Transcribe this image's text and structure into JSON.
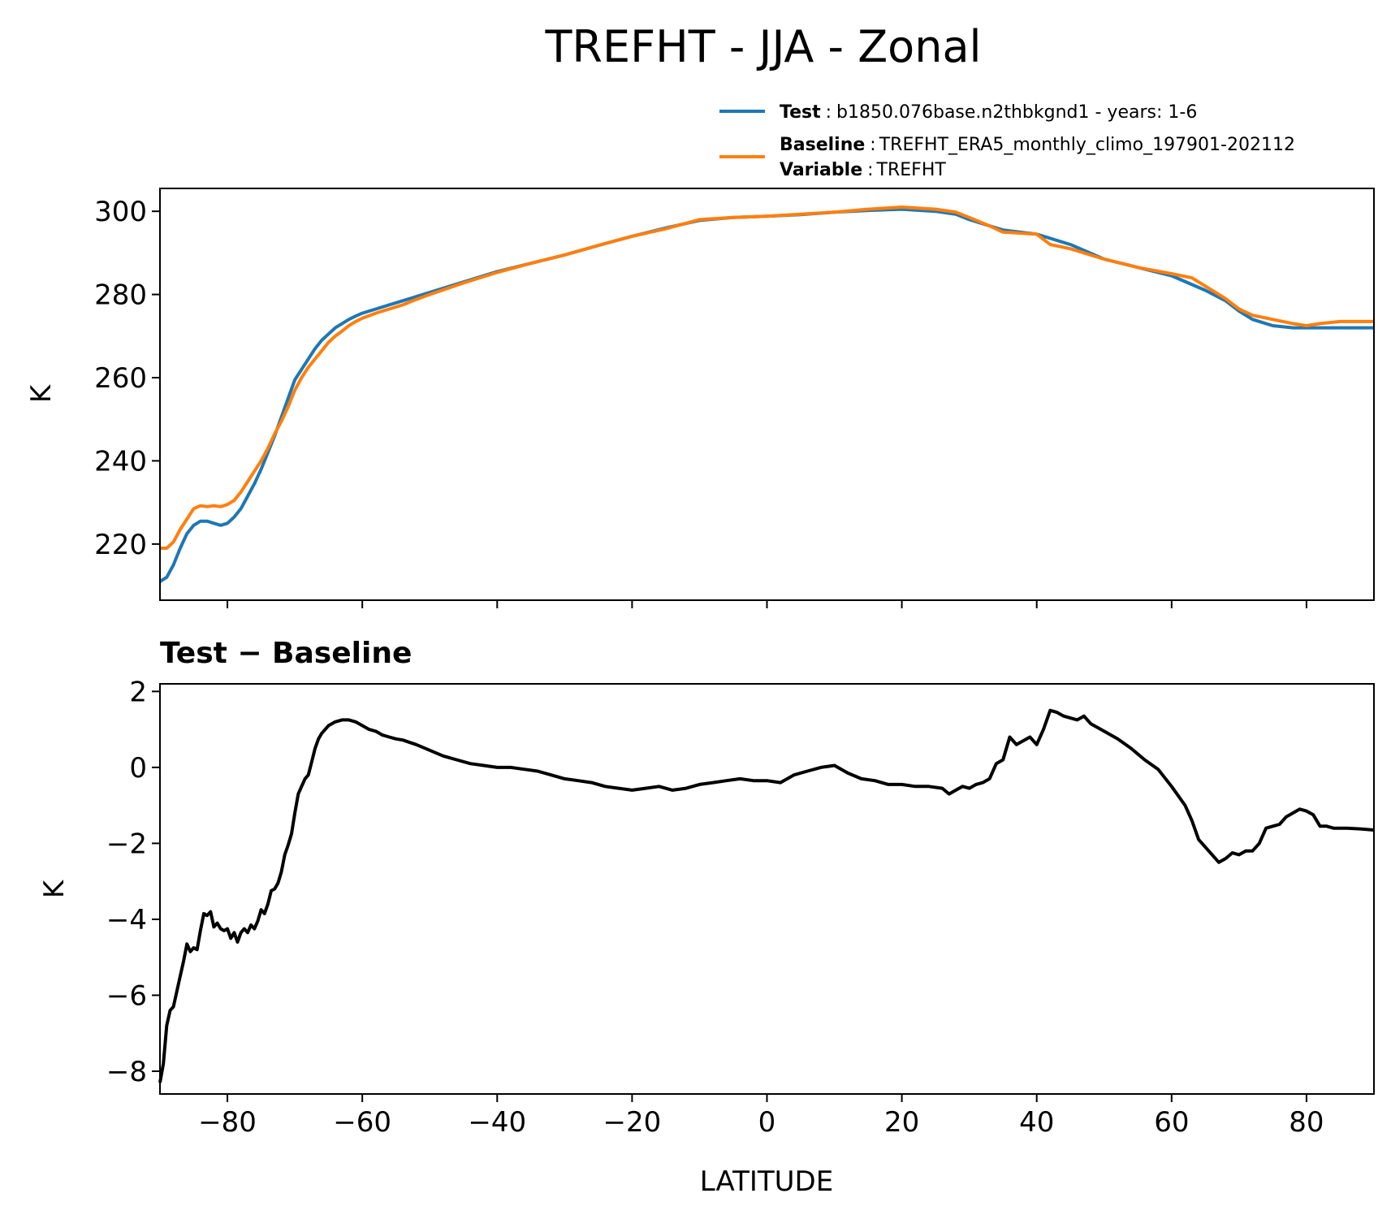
{
  "figure": {
    "title": "TREFHT - JJA - Zonal"
  },
  "legend": {
    "entries": [
      {
        "key": "Test",
        "sep": ":",
        "value": "b1850.076base.n2thbkgnd1 - years: 1-6",
        "color": "#1f77b4"
      },
      {
        "key": "Baseline",
        "sep": ":",
        "value": "TREFHT_ERA5_monthly_climo_197901-202112",
        "color": "#ff7f0e"
      }
    ],
    "variable": {
      "key": "Variable",
      "sep": ":",
      "value": "TREFHT"
    }
  },
  "chart_data": [
    {
      "type": "line",
      "title": "",
      "xlabel": "",
      "ylabel": "K",
      "xlim": [
        -90,
        90
      ],
      "ylim": [
        206.5,
        305.5
      ],
      "xticks": [
        -80,
        -60,
        -40,
        -20,
        0,
        20,
        40,
        60,
        80
      ],
      "xtick_labels_visible": false,
      "yticks": [
        220,
        240,
        260,
        280,
        300
      ],
      "ytick_labels": [
        "220",
        "240",
        "260",
        "280",
        "300"
      ],
      "grid": false,
      "legend_position": "top-right (above axes)",
      "series": [
        {
          "name": "Test",
          "color": "#1f77b4",
          "x": [
            -90,
            -89,
            -88,
            -87,
            -86,
            -85,
            -84,
            -83,
            -82,
            -81,
            -80,
            -79,
            -78,
            -77,
            -76,
            -75,
            -74,
            -73,
            -72,
            -71,
            -70,
            -69,
            -68,
            -67,
            -66,
            -65,
            -64,
            -63,
            -62,
            -61,
            -60,
            -58,
            -56,
            -54,
            -52,
            -50,
            -45,
            -40,
            -35,
            -30,
            -25,
            -20,
            -15,
            -10,
            -5,
            0,
            5,
            10,
            15,
            20,
            25,
            28,
            30,
            35,
            40,
            45,
            50,
            55,
            60,
            65,
            68,
            70,
            72,
            75,
            78,
            80,
            85,
            90
          ],
          "y": [
            211,
            212,
            215,
            219,
            222.5,
            224.5,
            225.5,
            225.5,
            225,
            224.5,
            225,
            226.5,
            228.5,
            231.5,
            234.5,
            238,
            242,
            246,
            250.5,
            255,
            259.5,
            262,
            264.5,
            267,
            269,
            270.5,
            272,
            273,
            274,
            274.8,
            275.5,
            276.5,
            277.5,
            278.5,
            279.5,
            280.5,
            283,
            285.5,
            287.5,
            289.5,
            291.8,
            294,
            296,
            297.8,
            298.5,
            298.8,
            299.2,
            299.8,
            300.2,
            300.5,
            300,
            299.3,
            298,
            295.5,
            294.5,
            292,
            288.5,
            286.5,
            284.5,
            281,
            278.5,
            276,
            274,
            272.5,
            272,
            272,
            272,
            272
          ]
        },
        {
          "name": "Baseline",
          "color": "#ff7f0e",
          "x": [
            -90,
            -89,
            -88,
            -87,
            -86,
            -85,
            -84,
            -83,
            -82,
            -81,
            -80,
            -79,
            -78,
            -77,
            -76,
            -75,
            -74,
            -73,
            -72,
            -71,
            -70,
            -69,
            -68,
            -67,
            -66,
            -65,
            -64,
            -63,
            -62,
            -61,
            -60,
            -58,
            -56,
            -54,
            -52,
            -50,
            -45,
            -40,
            -35,
            -30,
            -25,
            -20,
            -15,
            -10,
            -5,
            0,
            5,
            10,
            15,
            20,
            25,
            28,
            30,
            33,
            35,
            37,
            40,
            42,
            45,
            50,
            55,
            60,
            63,
            65,
            68,
            70,
            72,
            75,
            78,
            80,
            82,
            85,
            90
          ],
          "y": [
            219,
            219,
            220.5,
            223.5,
            226,
            228.5,
            229.2,
            229,
            229.2,
            229,
            229.5,
            230.5,
            232.5,
            235,
            237.5,
            240,
            243,
            246.5,
            249.5,
            253,
            257,
            260,
            262.5,
            264.5,
            266.5,
            268.5,
            270,
            271.2,
            272.5,
            273.5,
            274.3,
            275.5,
            276.5,
            277.5,
            278.8,
            280,
            282.8,
            285.3,
            287.5,
            289.5,
            291.8,
            294,
            295.8,
            298,
            298.5,
            298.8,
            299.3,
            299.8,
            300.5,
            301,
            300.5,
            299.8,
            298.5,
            296.5,
            295,
            294.8,
            294.5,
            292,
            291,
            288.5,
            286.5,
            285,
            284,
            282,
            279,
            276.5,
            275,
            274,
            273,
            272.5,
            273,
            273.5,
            273.5
          ]
        }
      ]
    },
    {
      "type": "line",
      "title": "Test − Baseline",
      "xlabel": "LATITUDE",
      "ylabel": "K",
      "xlim": [
        -90,
        90
      ],
      "ylim": [
        -8.6,
        2.2
      ],
      "xticks": [
        -80,
        -60,
        -40,
        -20,
        0,
        20,
        40,
        60,
        80
      ],
      "xtick_labels": [
        "−80",
        "−60",
        "−40",
        "−20",
        "0",
        "20",
        "40",
        "60",
        "80"
      ],
      "yticks": [
        -8,
        -6,
        -4,
        -2,
        0,
        2
      ],
      "ytick_labels": [
        "−8",
        "−6",
        "−4",
        "−2",
        "0",
        "2"
      ],
      "grid": false,
      "series": [
        {
          "name": "",
          "color": "#000000",
          "x": [
            -90,
            -89.5,
            -89,
            -88.5,
            -88,
            -87,
            -86.5,
            -86,
            -85.5,
            -85,
            -84.5,
            -84,
            -83.5,
            -83,
            -82.5,
            -82,
            -81.5,
            -81,
            -80.5,
            -80,
            -79.5,
            -79,
            -78.5,
            -78,
            -77.5,
            -77,
            -76.5,
            -76,
            -75.5,
            -75,
            -74.5,
            -74,
            -73.5,
            -73,
            -72.5,
            -72,
            -71.5,
            -71,
            -70.5,
            -70,
            -69.5,
            -69,
            -68.5,
            -68,
            -67.5,
            -67,
            -66.5,
            -66,
            -65.5,
            -65,
            -64,
            -63,
            -62,
            -61,
            -60,
            -59,
            -58,
            -57,
            -56,
            -55,
            -54,
            -52,
            -50,
            -48,
            -46,
            -44,
            -42,
            -40,
            -38,
            -36,
            -34,
            -32,
            -30,
            -28,
            -26,
            -24,
            -22,
            -20,
            -18,
            -16,
            -14,
            -12,
            -10,
            -8,
            -6,
            -4,
            -2,
            0,
            2,
            4,
            6,
            8,
            10,
            12,
            14,
            16,
            18,
            20,
            22,
            24,
            26,
            27,
            28,
            29,
            30,
            31,
            32,
            33,
            34,
            35,
            36,
            37,
            38,
            39,
            40,
            41,
            42,
            43,
            44,
            45,
            46,
            47,
            48,
            50,
            52,
            54,
            56,
            58,
            60,
            62,
            63,
            64,
            65,
            66,
            67,
            68,
            69,
            70,
            71,
            72,
            73,
            74,
            75,
            76,
            77,
            78,
            79,
            80,
            81,
            82,
            83,
            84,
            86,
            88,
            90
          ],
          "y": [
            -8.3,
            -7.8,
            -6.8,
            -6.4,
            -6.3,
            -5.5,
            -5.1,
            -4.65,
            -4.85,
            -4.75,
            -4.8,
            -4.3,
            -3.85,
            -3.9,
            -3.8,
            -4.2,
            -4.1,
            -4.25,
            -4.3,
            -4.25,
            -4.5,
            -4.35,
            -4.6,
            -4.35,
            -4.25,
            -4.35,
            -4.15,
            -4.25,
            -4.05,
            -3.75,
            -3.85,
            -3.6,
            -3.25,
            -3.2,
            -3.05,
            -2.75,
            -2.3,
            -2.05,
            -1.75,
            -1.2,
            -0.7,
            -0.5,
            -0.3,
            -0.2,
            0.15,
            0.5,
            0.75,
            0.9,
            1.0,
            1.1,
            1.2,
            1.25,
            1.25,
            1.2,
            1.1,
            1.0,
            0.95,
            0.85,
            0.8,
            0.75,
            0.72,
            0.6,
            0.45,
            0.3,
            0.2,
            0.1,
            0.05,
            0.0,
            0.0,
            -0.05,
            -0.1,
            -0.2,
            -0.3,
            -0.35,
            -0.4,
            -0.5,
            -0.55,
            -0.6,
            -0.55,
            -0.5,
            -0.6,
            -0.55,
            -0.45,
            -0.4,
            -0.35,
            -0.3,
            -0.35,
            -0.35,
            -0.4,
            -0.2,
            -0.1,
            0.0,
            0.05,
            -0.15,
            -0.3,
            -0.35,
            -0.45,
            -0.45,
            -0.5,
            -0.5,
            -0.55,
            -0.7,
            -0.6,
            -0.5,
            -0.55,
            -0.45,
            -0.4,
            -0.3,
            0.1,
            0.2,
            0.8,
            0.6,
            0.7,
            0.8,
            0.6,
            1.0,
            1.5,
            1.45,
            1.35,
            1.3,
            1.25,
            1.35,
            1.15,
            0.95,
            0.75,
            0.5,
            0.2,
            -0.05,
            -0.5,
            -1.0,
            -1.4,
            -1.9,
            -2.1,
            -2.3,
            -2.5,
            -2.4,
            -2.25,
            -2.3,
            -2.2,
            -2.2,
            -2.0,
            -1.6,
            -1.55,
            -1.5,
            -1.3,
            -1.2,
            -1.1,
            -1.15,
            -1.25,
            -1.55,
            -1.55,
            -1.6,
            -1.6,
            -1.62,
            -1.65
          ]
        }
      ]
    }
  ]
}
